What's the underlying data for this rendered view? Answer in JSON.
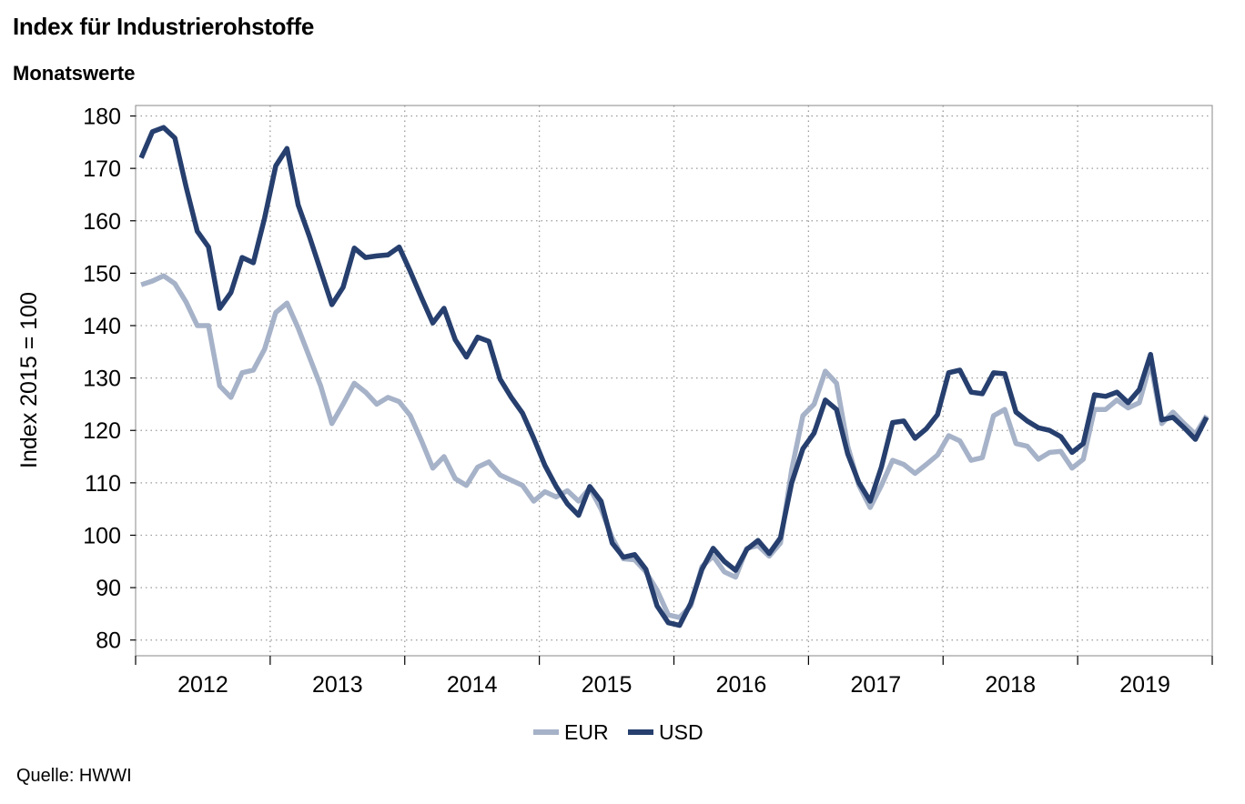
{
  "header": {
    "title": "Index für Industrierohstoffe",
    "subtitle": "Monatswerte"
  },
  "footer": {
    "source": "Quelle: HWWI"
  },
  "chart_data": {
    "type": "line",
    "title": "Index für Industrierohstoffe",
    "subtitle": "Monatswerte",
    "ylabel": "Index 2015 = 100",
    "xlabel": "",
    "ylim": [
      77,
      182
    ],
    "yticks": [
      80,
      90,
      100,
      110,
      120,
      130,
      140,
      150,
      160,
      170,
      180
    ],
    "xlim": [
      "2012-01",
      "2019-12"
    ],
    "xticks": [
      "2012",
      "2013",
      "2014",
      "2015",
      "2016",
      "2017",
      "2018",
      "2019"
    ],
    "grid": true,
    "legend_position": "bottom-center",
    "colors": {
      "EUR": "#a6b2c8",
      "USD": "#263f6e"
    },
    "x_start": "2012-01",
    "series": [
      {
        "name": "EUR",
        "values": [
          147.8,
          148.5,
          149.5,
          148,
          144.5,
          140,
          140,
          128.5,
          126.3,
          131,
          131.5,
          135.5,
          142.5,
          144.3,
          139.5,
          134,
          128.5,
          121.3,
          125,
          129,
          127.3,
          125,
          126.3,
          125.5,
          122.8,
          118,
          112.8,
          115,
          110.8,
          109.5,
          113,
          114,
          111.5,
          110.5,
          109.5,
          106.5,
          108.3,
          107.3,
          108.5,
          106.5,
          109,
          105,
          99.5,
          95.5,
          95.3,
          93,
          89.5,
          84.8,
          84.3,
          86.5,
          94,
          96,
          93,
          92,
          97.5,
          98,
          96,
          98.5,
          112.5,
          122.8,
          125,
          131.3,
          129,
          117,
          109.5,
          105.3,
          109.5,
          114.3,
          113.5,
          111.8,
          113.5,
          115.3,
          119,
          118,
          114.3,
          114.8,
          122.8,
          124,
          117.5,
          117,
          114.5,
          115.8,
          116,
          112.8,
          114.5,
          124,
          124,
          125.8,
          124.3,
          125.3,
          133,
          121.3,
          123.5,
          121.3,
          119.3,
          122.8
        ]
      },
      {
        "name": "USD",
        "values": [
          172,
          177,
          177.8,
          175.8,
          166.5,
          158,
          155,
          143.3,
          146.3,
          153,
          152,
          160.5,
          170.5,
          173.8,
          163,
          157,
          150.5,
          144,
          147.3,
          154.8,
          153,
          153.3,
          153.5,
          155,
          150.3,
          145.3,
          140.5,
          143.3,
          137.3,
          134,
          137.8,
          137,
          129.8,
          126.3,
          123.3,
          118.5,
          113.3,
          109.3,
          106,
          103.8,
          109.3,
          106.5,
          98.5,
          95.8,
          96.3,
          93.5,
          86.5,
          83.3,
          82.8,
          87,
          93.5,
          97.5,
          95,
          93.3,
          97.3,
          99,
          96.5,
          99.5,
          110,
          116.5,
          119.5,
          125.8,
          124,
          115.5,
          110,
          106.5,
          113,
          121.5,
          121.8,
          118.5,
          120.3,
          123,
          131,
          131.5,
          127.3,
          127,
          131,
          130.8,
          123.5,
          121.8,
          120.5,
          120,
          118.8,
          115.8,
          117.5,
          126.8,
          126.5,
          127.3,
          125.3,
          127.8,
          134.5,
          122,
          122.5,
          120.5,
          118.3,
          122.5
        ]
      }
    ]
  }
}
